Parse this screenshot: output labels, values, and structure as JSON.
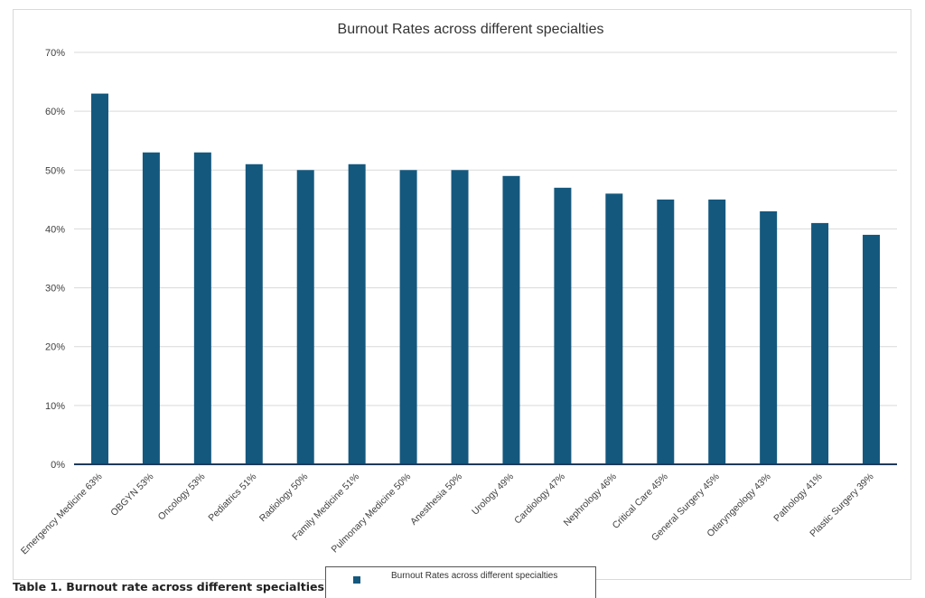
{
  "colors": {
    "bar": "#14587e",
    "grid": "#d9d9d9",
    "axis": "#1f3a5a",
    "text": "#404040",
    "title": "#333333"
  },
  "caption": "Table 1. Burnout rate across different specialties",
  "chart_data": {
    "type": "bar",
    "title": "Burnout Rates across different specialties",
    "xlabel": "",
    "ylabel": "",
    "ylim": [
      0,
      70
    ],
    "y_ticks": [
      0,
      10,
      20,
      30,
      40,
      50,
      60,
      70
    ],
    "y_tick_labels": [
      "0%",
      "10%",
      "20%",
      "30%",
      "40%",
      "50%",
      "60%",
      "70%"
    ],
    "grid": true,
    "legend_position": "bottom",
    "categories": [
      "Emergency Medicine 63%",
      "OBGYN 53%",
      "Oncology 53%",
      "Pediatrics 51%",
      "Radiology 50%",
      "Family Medicine 51%",
      "Pulmonary Medicine 50%",
      "Anesthesia 50%",
      "Urology 49%",
      "Cardiology 47%",
      "Nephrology 46%",
      "Critical Care 45%",
      "General Surgery 45%",
      "Otlaryngeology 43%",
      "Pathology 41%",
      "Plastic Surgery 39%"
    ],
    "series": [
      {
        "name": "Burnout Rates across different specialties",
        "values": [
          63,
          53,
          53,
          51,
          50,
          51,
          50,
          50,
          49,
          47,
          46,
          45,
          45,
          43,
          41,
          39
        ]
      }
    ]
  }
}
